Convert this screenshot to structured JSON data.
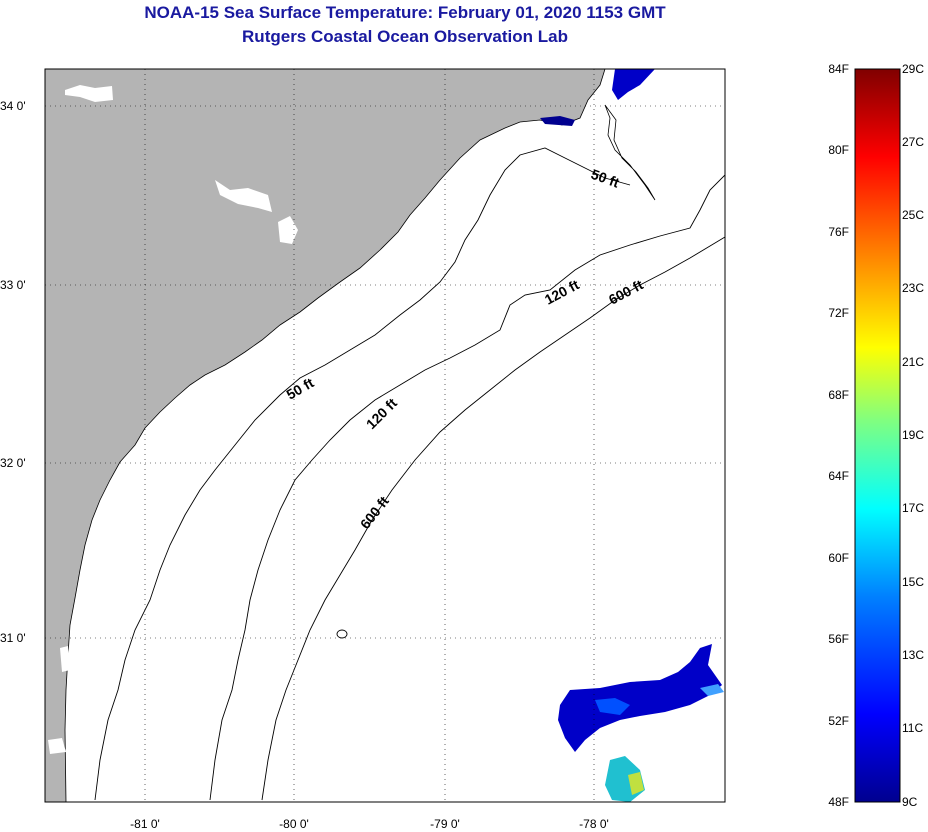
{
  "header": {
    "title": "NOAA-15 Sea Surface Temperature:  February 01, 2020 1153 GMT",
    "subtitle": "Rutgers Coastal Ocean Observation Lab"
  },
  "map": {
    "lon_labels": [
      "-81 0'",
      "-80 0'",
      "-79 0'",
      "-78 0'"
    ],
    "lat_labels": [
      "34 0'",
      "33 0'",
      "32 0'",
      "31 0'"
    ],
    "contour_labels": [
      "50 ft",
      "50 ft",
      "120 ft",
      "120 ft",
      "600 ft",
      "600 ft"
    ],
    "colors": {
      "land": "#b4b4b4",
      "contour": "#000000",
      "water": "#ffffff"
    }
  },
  "colorbar": {
    "fahrenheit_labels": [
      "84F",
      "80F",
      "76F",
      "72F",
      "68F",
      "64F",
      "60F",
      "56F",
      "52F",
      "48F"
    ],
    "celsius_labels": [
      "29C",
      "27C",
      "25C",
      "23C",
      "21C",
      "19C",
      "17C",
      "15C",
      "13C",
      "11C",
      "9C"
    ],
    "colors": [
      "#00008f",
      "#0000ff",
      "#0080ff",
      "#00ffff",
      "#80ff80",
      "#ffff00",
      "#ff8000",
      "#ff0000",
      "#800000"
    ]
  }
}
